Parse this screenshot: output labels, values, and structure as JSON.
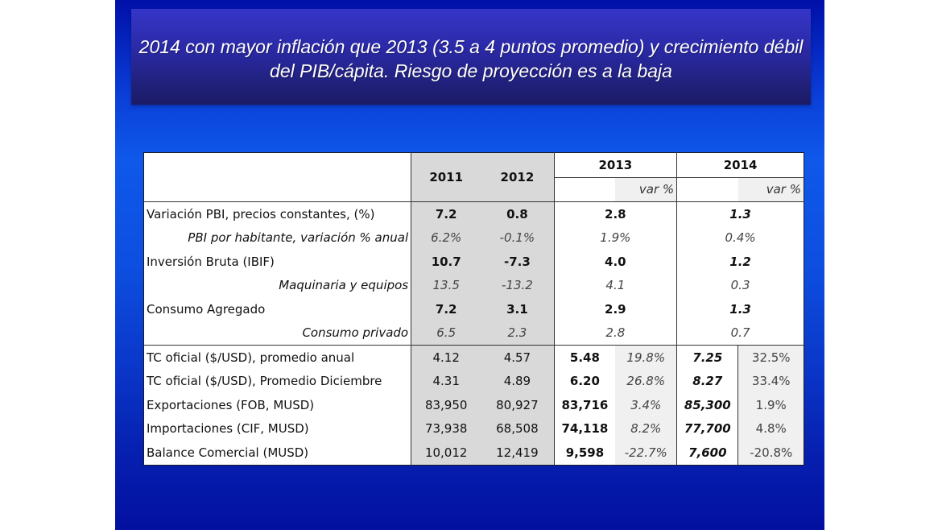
{
  "slide": {
    "title": "2014 con mayor inflación que 2013 (3.5 a 4 puntos promedio) y crecimiento débil del PIB/cápita. Riesgo de proyección es a la baja"
  },
  "table": {
    "headers": {
      "y2011": "2011",
      "y2012": "2012",
      "y2013": "2013",
      "y2014": "2014",
      "var_2013": "var %",
      "var_2014": "var %"
    },
    "rows": [
      {
        "label": "Variación PBI, precios constantes, (%)",
        "y2011": "7.2",
        "y2012": "0.8",
        "y2013": "2.8",
        "y2014": "1.3"
      },
      {
        "label": "PBI por habitante, variación % anual",
        "y2011": "6.2%",
        "y2012": "-0.1%",
        "y2013": "1.9%",
        "y2014": "0.4%"
      },
      {
        "label": "Inversión Bruta (IBIF)",
        "y2011": "10.7",
        "y2012": "-7.3",
        "y2013": "4.0",
        "y2014": "1.2"
      },
      {
        "label": "Maquinaria y equipos",
        "y2011": "13.5",
        "y2012": "-13.2",
        "y2013": "4.1",
        "y2014": "0.3"
      },
      {
        "label": "Consumo Agregado",
        "y2011": "7.2",
        "y2012": "3.1",
        "y2013": "2.9",
        "y2014": "1.3"
      },
      {
        "label": "Consumo privado",
        "y2011": "6.5",
        "y2012": "2.3",
        "y2013": "2.8",
        "y2014": "0.7"
      },
      {
        "label": "TC oficial ($/USD), promedio anual",
        "y2011": "4.12",
        "y2012": "4.57",
        "y2013": "5.48",
        "var2013": "19.8%",
        "y2014": "7.25",
        "var2014": "32.5%"
      },
      {
        "label": "TC oficial ($/USD), Promedio Diciembre",
        "y2011": "4.31",
        "y2012": "4.89",
        "y2013": "6.20",
        "var2013": "26.8%",
        "y2014": "8.27",
        "var2014": "33.4%"
      },
      {
        "label": "Exportaciones (FOB, MUSD)",
        "y2011": "83,950",
        "y2012": "80,927",
        "y2013": "83,716",
        "var2013": "3.4%",
        "y2014": "85,300",
        "var2014": "1.9%"
      },
      {
        "label": "Importaciones (CIF, MUSD)",
        "y2011": "73,938",
        "y2012": "68,508",
        "y2013": "74,118",
        "var2013": "8.2%",
        "y2014": "77,700",
        "var2014": "4.8%"
      },
      {
        "label": "Balance Comercial (MUSD)",
        "y2011": "10,012",
        "y2012": "12,419",
        "y2013": "9,598",
        "var2013": "-22.7%",
        "y2014": "7,600",
        "var2014": "-20.8%"
      }
    ]
  }
}
